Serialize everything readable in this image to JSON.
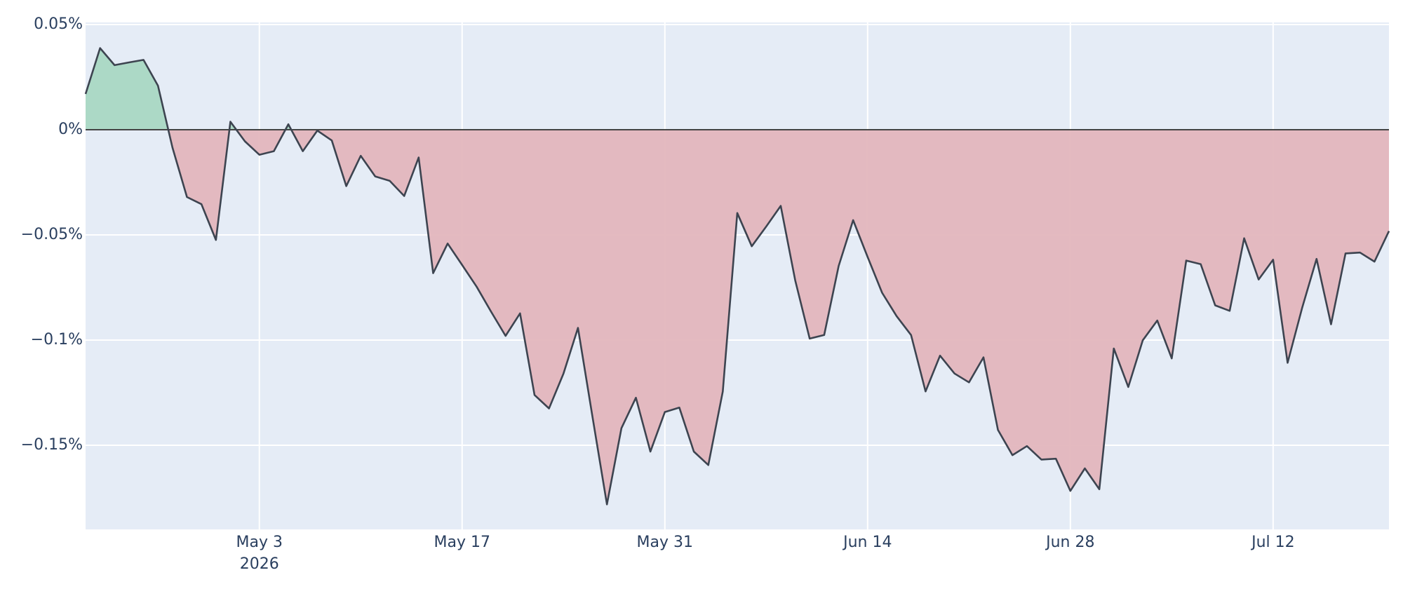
{
  "chart_data": {
    "type": "line",
    "x": [
      "2026-04-21",
      "2026-04-22",
      "2026-04-23",
      "2026-04-24",
      "2026-04-25",
      "2026-04-26",
      "2026-04-27",
      "2026-04-28",
      "2026-04-29",
      "2026-04-30",
      "2026-05-01",
      "2026-05-02",
      "2026-05-03",
      "2026-05-04",
      "2026-05-05",
      "2026-05-06",
      "2026-05-07",
      "2026-05-08",
      "2026-05-09",
      "2026-05-10",
      "2026-05-11",
      "2026-05-12",
      "2026-05-13",
      "2026-05-14",
      "2026-05-15",
      "2026-05-16",
      "2026-05-17",
      "2026-05-18",
      "2026-05-19",
      "2026-05-20",
      "2026-05-21",
      "2026-05-22",
      "2026-05-23",
      "2026-05-24",
      "2026-05-25",
      "2026-05-26",
      "2026-05-27",
      "2026-05-28",
      "2026-05-29",
      "2026-05-30",
      "2026-05-31",
      "2026-06-01",
      "2026-06-02",
      "2026-06-03",
      "2026-06-04",
      "2026-06-05",
      "2026-06-06",
      "2026-06-07",
      "2026-06-08",
      "2026-06-09",
      "2026-06-10",
      "2026-06-11",
      "2026-06-12",
      "2026-06-13",
      "2026-06-14",
      "2026-06-15",
      "2026-06-16",
      "2026-06-17",
      "2026-06-18",
      "2026-06-19",
      "2026-06-20",
      "2026-06-21",
      "2026-06-22",
      "2026-06-23",
      "2026-06-24",
      "2026-06-25",
      "2026-06-26",
      "2026-06-27",
      "2026-06-28",
      "2026-06-29",
      "2026-06-30",
      "2026-07-01",
      "2026-07-02",
      "2026-07-03",
      "2026-07-04",
      "2026-07-05",
      "2026-07-06",
      "2026-07-07",
      "2026-07-08",
      "2026-07-09",
      "2026-07-10",
      "2026-07-11",
      "2026-07-12",
      "2026-07-13",
      "2026-07-14",
      "2026-07-15",
      "2026-07-16",
      "2026-07-17",
      "2026-07-18",
      "2026-07-19",
      "2026-07-20"
    ],
    "values": [
      0.017,
      0.0388,
      0.0307,
      0.032,
      0.0332,
      0.0209,
      -0.0085,
      -0.032,
      -0.0354,
      -0.0524,
      0.0038,
      -0.0055,
      -0.0119,
      -0.0102,
      0.0026,
      -0.0102,
      -0.0004,
      -0.0051,
      -0.0268,
      -0.0124,
      -0.0222,
      -0.0243,
      -0.0315,
      -0.0132,
      -0.0682,
      -0.0541,
      -0.0643,
      -0.0746,
      -0.0865,
      -0.098,
      -0.0873,
      -0.1261,
      -0.1325,
      -0.1159,
      -0.0942,
      -0.1364,
      -0.1781,
      -0.1419,
      -0.1274,
      -0.153,
      -0.1342,
      -0.1321,
      -0.153,
      -0.1594,
      -0.1244,
      -0.0396,
      -0.0554,
      -0.046,
      -0.0362,
      -0.0716,
      -0.0993,
      -0.0976,
      -0.0648,
      -0.043,
      -0.0605,
      -0.0775,
      -0.0886,
      -0.0976,
      -0.1244,
      -0.1074,
      -0.1159,
      -0.1201,
      -0.1082,
      -0.1427,
      -0.1547,
      -0.1504,
      -0.1568,
      -0.1564,
      -0.1717,
      -0.161,
      -0.1709,
      -0.104,
      -0.1223,
      -0.1001,
      -0.0907,
      -0.1087,
      -0.0622,
      -0.0639,
      -0.0835,
      -0.0861,
      -0.0516,
      -0.0712,
      -0.0618,
      -0.1108,
      -0.0848,
      -0.0614,
      -0.0925,
      -0.0588,
      -0.0584,
      -0.0627,
      -0.0482
    ],
    "color": "#3d4450",
    "positive_fill": "#a9d8c3",
    "negative_fill": "#e3b6bd",
    "xlim": [
      "2026-04-21",
      "2026-07-20"
    ],
    "xticks": [
      {
        "value": "2026-05-03",
        "label": "May 3",
        "year": "2026"
      },
      {
        "value": "2026-05-17",
        "label": "May 17"
      },
      {
        "value": "2026-05-31",
        "label": "May 31"
      },
      {
        "value": "2026-06-14",
        "label": "Jun 14"
      },
      {
        "value": "2026-06-28",
        "label": "Jun 28"
      },
      {
        "value": "2026-07-12",
        "label": "Jul 12"
      }
    ],
    "ylim": [
      -0.19,
      0.051
    ],
    "yticks": [
      {
        "value": 0.05,
        "label": "0.05%"
      },
      {
        "value": 0,
        "label": "0%"
      },
      {
        "value": -0.05,
        "label": "−0.05%"
      },
      {
        "value": -0.1,
        "label": "−0.1%"
      },
      {
        "value": -0.15,
        "label": "−0.15%"
      }
    ],
    "grid": true
  }
}
